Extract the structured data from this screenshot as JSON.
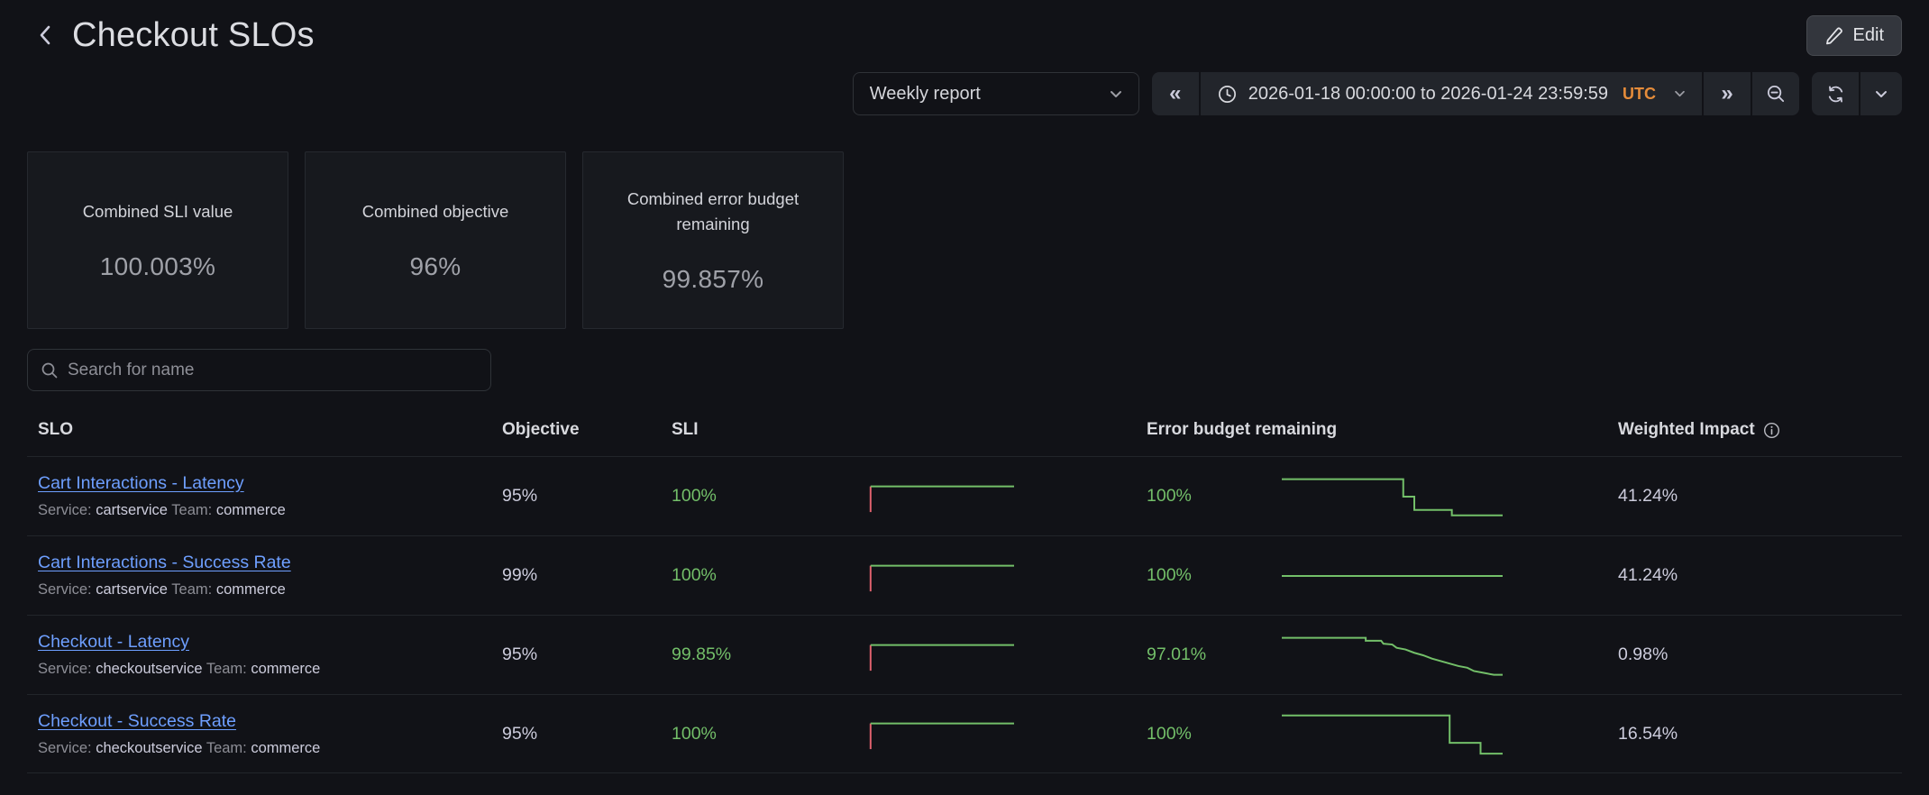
{
  "colors": {
    "green": "#73bf69",
    "red": "#e0616d",
    "link_blue": "#6e9fff",
    "timezone_orange": "#e58c3a",
    "page_bg": "#111217"
  },
  "header": {
    "title": "Checkout SLOs",
    "edit_button": "Edit"
  },
  "toolbar": {
    "report_dropdown": {
      "value": "Weekly report"
    },
    "time_picker": {
      "range": "2026-01-18 00:00:00 to 2026-01-24 23:59:59",
      "timezone": "UTC",
      "back_icon": "«",
      "forward_icon": "»"
    }
  },
  "stat_panels": [
    {
      "label": "Combined SLI value",
      "value": "100.003%"
    },
    {
      "label": "Combined objective",
      "value": "96%"
    },
    {
      "label": "Combined error budget remaining",
      "value": "99.857%"
    }
  ],
  "search": {
    "placeholder": "Search for name"
  },
  "slo_table": {
    "headers": {
      "slo": "SLO",
      "objective": "Objective",
      "sli": "SLI",
      "error_budget": "Error budget remaining",
      "weighted_impact": "Weighted Impact"
    },
    "rows": [
      {
        "name": "Cart Interactions - Latency",
        "service_label": "Service:",
        "service": "cartservice",
        "team_label": "Team:",
        "team": "commerce",
        "objective": "95%",
        "sli": "100%",
        "error_budget": "100%",
        "weighted_impact": "41.24%",
        "sli_spark": [
          {
            "color": "red",
            "points": [
              [
                0.005,
                0.2
              ],
              [
                0.005,
                0.95
              ]
            ]
          },
          {
            "color": "green",
            "points": [
              [
                0.005,
                0.2
              ],
              [
                1,
                0.2
              ]
            ]
          }
        ],
        "eb_spark": [
          {
            "color": "green",
            "points": [
              [
                0,
                0.08
              ],
              [
                0.55,
                0.08
              ],
              [
                0.55,
                0.5
              ],
              [
                0.6,
                0.5
              ],
              [
                0.6,
                0.82
              ],
              [
                0.77,
                0.82
              ],
              [
                0.77,
                0.95
              ],
              [
                1,
                0.95
              ]
            ]
          }
        ]
      },
      {
        "name": "Cart Interactions - Success Rate",
        "service_label": "Service:",
        "service": "cartservice",
        "team_label": "Team:",
        "team": "commerce",
        "objective": "99%",
        "sli": "100%",
        "error_budget": "100%",
        "weighted_impact": "41.24%",
        "sli_spark": [
          {
            "color": "red",
            "points": [
              [
                0.005,
                0.2
              ],
              [
                0.005,
                0.95
              ]
            ]
          },
          {
            "color": "green",
            "points": [
              [
                0.005,
                0.2
              ],
              [
                1,
                0.2
              ]
            ]
          }
        ],
        "eb_spark": [
          {
            "color": "green",
            "points": [
              [
                0,
                0.5
              ],
              [
                1,
                0.5
              ]
            ]
          }
        ]
      },
      {
        "name": "Checkout - Latency",
        "service_label": "Service:",
        "service": "checkoutservice",
        "team_label": "Team:",
        "team": "commerce",
        "objective": "95%",
        "sli": "99.85%",
        "error_budget": "97.01%",
        "weighted_impact": "0.98%",
        "sli_spark": [
          {
            "color": "red",
            "points": [
              [
                0.005,
                0.2
              ],
              [
                0.005,
                0.95
              ]
            ]
          },
          {
            "color": "green",
            "points": [
              [
                0.005,
                0.2
              ],
              [
                1,
                0.2
              ]
            ]
          }
        ],
        "eb_spark": [
          {
            "color": "green",
            "points": [
              [
                0,
                0.08
              ],
              [
                0.38,
                0.08
              ],
              [
                0.38,
                0.15
              ],
              [
                0.45,
                0.15
              ],
              [
                0.46,
                0.22
              ],
              [
                0.5,
                0.24
              ],
              [
                0.52,
                0.32
              ],
              [
                0.56,
                0.36
              ],
              [
                0.6,
                0.44
              ],
              [
                0.64,
                0.5
              ],
              [
                0.68,
                0.58
              ],
              [
                0.72,
                0.64
              ],
              [
                0.76,
                0.7
              ],
              [
                0.8,
                0.76
              ],
              [
                0.84,
                0.8
              ],
              [
                0.87,
                0.88
              ],
              [
                0.92,
                0.93
              ],
              [
                0.96,
                0.97
              ],
              [
                1,
                0.97
              ]
            ]
          }
        ]
      },
      {
        "name": "Checkout - Success Rate",
        "service_label": "Service:",
        "service": "checkoutservice",
        "team_label": "Team:",
        "team": "commerce",
        "objective": "95%",
        "sli": "100%",
        "error_budget": "100%",
        "weighted_impact": "16.54%",
        "sli_spark": [
          {
            "color": "red",
            "points": [
              [
                0.005,
                0.2
              ],
              [
                0.005,
                0.95
              ]
            ]
          },
          {
            "color": "green",
            "points": [
              [
                0.005,
                0.2
              ],
              [
                1,
                0.2
              ]
            ]
          }
        ],
        "eb_spark": [
          {
            "color": "green",
            "points": [
              [
                0,
                0.06
              ],
              [
                0.76,
                0.06
              ],
              [
                0.76,
                0.72
              ],
              [
                0.9,
                0.72
              ],
              [
                0.9,
                0.98
              ],
              [
                1,
                0.98
              ]
            ]
          }
        ]
      }
    ]
  }
}
